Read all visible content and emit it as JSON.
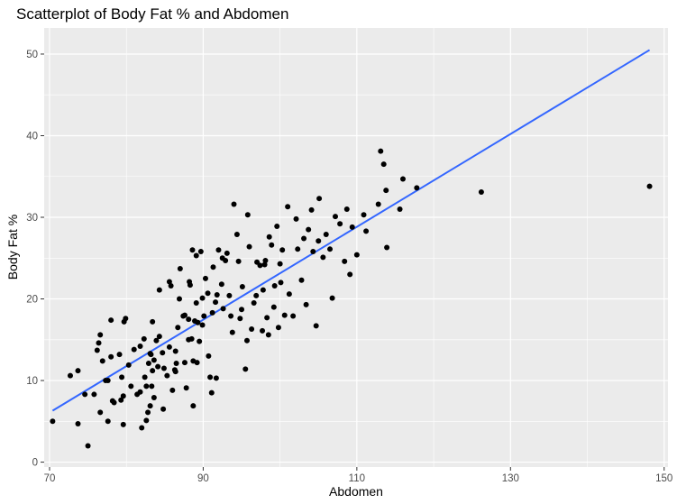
{
  "chart_data": {
    "type": "scatter",
    "title": "Scatterplot of Body Fat % and Abdomen",
    "xlabel": "Abdomen",
    "ylabel": "Body Fat %",
    "xlim": [
      69.3,
      150.5
    ],
    "ylim": [
      -0.6,
      53.2
    ],
    "x_ticks": [
      70,
      90,
      110,
      130,
      150
    ],
    "y_ticks": [
      0,
      10,
      20,
      30,
      40,
      50
    ],
    "grid": true,
    "legend": "none",
    "colors": {
      "panel_background": "#EBEBEB",
      "grid_major": "#FFFFFF",
      "points": "#000000",
      "fit_line": "#3366FF"
    },
    "fit_line": {
      "x": [
        70.4,
        148.1
      ],
      "y": [
        6.3,
        50.5
      ]
    },
    "series": [
      {
        "points": [
          [
            70.4,
            5.0
          ],
          [
            73.7,
            4.7
          ],
          [
            75.0,
            2.0
          ],
          [
            72.7,
            10.6
          ],
          [
            73.7,
            11.2
          ],
          [
            74.6,
            8.3
          ],
          [
            75.8,
            8.3
          ],
          [
            76.2,
            13.7
          ],
          [
            76.4,
            14.6
          ],
          [
            76.6,
            15.6
          ],
          [
            76.6,
            6.1
          ],
          [
            76.9,
            12.4
          ],
          [
            77.3,
            10.0
          ],
          [
            77.6,
            10.0
          ],
          [
            77.6,
            5.0
          ],
          [
            78.0,
            17.4
          ],
          [
            78.0,
            12.9
          ],
          [
            78.2,
            7.5
          ],
          [
            78.4,
            7.3
          ],
          [
            79.1,
            13.2
          ],
          [
            79.3,
            7.6
          ],
          [
            79.4,
            10.4
          ],
          [
            79.6,
            8.1
          ],
          [
            79.6,
            4.6
          ],
          [
            79.7,
            17.2
          ],
          [
            79.9,
            17.6
          ],
          [
            80.3,
            11.9
          ],
          [
            80.6,
            9.3
          ],
          [
            81.0,
            13.8
          ],
          [
            81.4,
            8.3
          ],
          [
            81.8,
            14.2
          ],
          [
            81.8,
            8.6
          ],
          [
            82.0,
            4.2
          ],
          [
            82.3,
            15.1
          ],
          [
            82.4,
            10.4
          ],
          [
            82.6,
            5.1
          ],
          [
            82.6,
            9.3
          ],
          [
            82.8,
            6.1
          ],
          [
            82.9,
            12.1
          ],
          [
            83.1,
            13.3
          ],
          [
            83.1,
            6.9
          ],
          [
            83.2,
            13.2
          ],
          [
            83.3,
            9.3
          ],
          [
            83.4,
            17.2
          ],
          [
            83.4,
            11.2
          ],
          [
            83.6,
            7.9
          ],
          [
            83.6,
            12.5
          ],
          [
            83.9,
            14.9
          ],
          [
            84.1,
            11.7
          ],
          [
            84.3,
            21.1
          ],
          [
            84.3,
            15.4
          ],
          [
            84.7,
            13.4
          ],
          [
            84.8,
            6.5
          ],
          [
            84.9,
            11.5
          ],
          [
            85.3,
            10.6
          ],
          [
            85.6,
            22.1
          ],
          [
            85.6,
            14.1
          ],
          [
            85.8,
            21.6
          ],
          [
            86.0,
            8.8
          ],
          [
            86.3,
            11.3
          ],
          [
            86.4,
            13.6
          ],
          [
            86.4,
            11.1
          ],
          [
            86.5,
            12.1
          ],
          [
            86.7,
            16.5
          ],
          [
            86.9,
            20.0
          ],
          [
            87.0,
            23.7
          ],
          [
            87.4,
            17.9
          ],
          [
            87.6,
            18.0
          ],
          [
            87.6,
            12.2
          ],
          [
            87.8,
            9.1
          ],
          [
            88.1,
            15.0
          ],
          [
            88.1,
            17.5
          ],
          [
            88.2,
            22.1
          ],
          [
            88.3,
            21.7
          ],
          [
            88.5,
            15.1
          ],
          [
            88.6,
            26.0
          ],
          [
            88.7,
            12.4
          ],
          [
            88.7,
            6.9
          ],
          [
            88.9,
            17.3
          ],
          [
            89.1,
            25.3
          ],
          [
            89.1,
            19.5
          ],
          [
            89.2,
            12.2
          ],
          [
            89.3,
            17.1
          ],
          [
            89.5,
            14.8
          ],
          [
            89.7,
            25.8
          ],
          [
            89.9,
            20.1
          ],
          [
            89.9,
            16.8
          ],
          [
            90.1,
            17.9
          ],
          [
            90.3,
            22.5
          ],
          [
            90.6,
            20.7
          ],
          [
            90.7,
            13.0
          ],
          [
            90.9,
            10.4
          ],
          [
            91.1,
            8.5
          ],
          [
            91.2,
            18.3
          ],
          [
            91.3,
            23.9
          ],
          [
            91.6,
            19.6
          ],
          [
            91.7,
            10.3
          ],
          [
            91.8,
            20.5
          ],
          [
            92.0,
            26.0
          ],
          [
            92.4,
            21.8
          ],
          [
            92.5,
            25.0
          ],
          [
            92.6,
            18.8
          ],
          [
            92.9,
            24.7
          ],
          [
            93.1,
            25.6
          ],
          [
            93.4,
            20.4
          ],
          [
            93.6,
            17.9
          ],
          [
            93.8,
            15.9
          ],
          [
            94.0,
            31.6
          ],
          [
            94.4,
            27.9
          ],
          [
            94.6,
            24.6
          ],
          [
            94.8,
            17.6
          ],
          [
            95.0,
            18.7
          ],
          [
            95.1,
            21.5
          ],
          [
            95.5,
            11.4
          ],
          [
            95.7,
            14.9
          ],
          [
            95.8,
            30.3
          ],
          [
            96.0,
            26.4
          ],
          [
            96.3,
            16.3
          ],
          [
            96.6,
            19.5
          ],
          [
            96.9,
            20.4
          ],
          [
            97.0,
            24.5
          ],
          [
            97.4,
            24.1
          ],
          [
            97.7,
            16.1
          ],
          [
            97.8,
            21.1
          ],
          [
            98.0,
            24.2
          ],
          [
            98.1,
            24.7
          ],
          [
            98.3,
            17.7
          ],
          [
            98.5,
            15.6
          ],
          [
            98.6,
            27.6
          ],
          [
            98.9,
            26.6
          ],
          [
            99.2,
            19.0
          ],
          [
            99.3,
            21.6
          ],
          [
            99.6,
            28.9
          ],
          [
            99.8,
            16.5
          ],
          [
            100.0,
            24.3
          ],
          [
            100.1,
            22.0
          ],
          [
            100.3,
            26.0
          ],
          [
            100.6,
            18.0
          ],
          [
            101.0,
            31.3
          ],
          [
            101.2,
            20.6
          ],
          [
            101.7,
            17.9
          ],
          [
            102.1,
            29.8
          ],
          [
            102.3,
            26.1
          ],
          [
            102.8,
            22.3
          ],
          [
            103.1,
            27.4
          ],
          [
            103.4,
            19.3
          ],
          [
            103.7,
            28.5
          ],
          [
            104.1,
            30.9
          ],
          [
            104.3,
            25.8
          ],
          [
            104.7,
            16.7
          ],
          [
            105.0,
            27.1
          ],
          [
            105.1,
            32.3
          ],
          [
            105.6,
            25.1
          ],
          [
            106.0,
            27.9
          ],
          [
            106.5,
            26.1
          ],
          [
            106.8,
            20.1
          ],
          [
            107.2,
            30.1
          ],
          [
            107.8,
            29.2
          ],
          [
            108.4,
            24.6
          ],
          [
            108.7,
            31.0
          ],
          [
            109.1,
            23.0
          ],
          [
            109.4,
            28.8
          ],
          [
            110.0,
            25.4
          ],
          [
            110.9,
            30.3
          ],
          [
            111.2,
            28.3
          ],
          [
            112.8,
            31.6
          ],
          [
            113.1,
            38.1
          ],
          [
            113.5,
            36.5
          ],
          [
            113.8,
            33.3
          ],
          [
            113.9,
            26.3
          ],
          [
            115.6,
            31.0
          ],
          [
            116.0,
            34.7
          ],
          [
            117.8,
            33.6
          ],
          [
            126.2,
            33.1
          ],
          [
            148.1,
            33.8
          ]
        ]
      }
    ]
  }
}
